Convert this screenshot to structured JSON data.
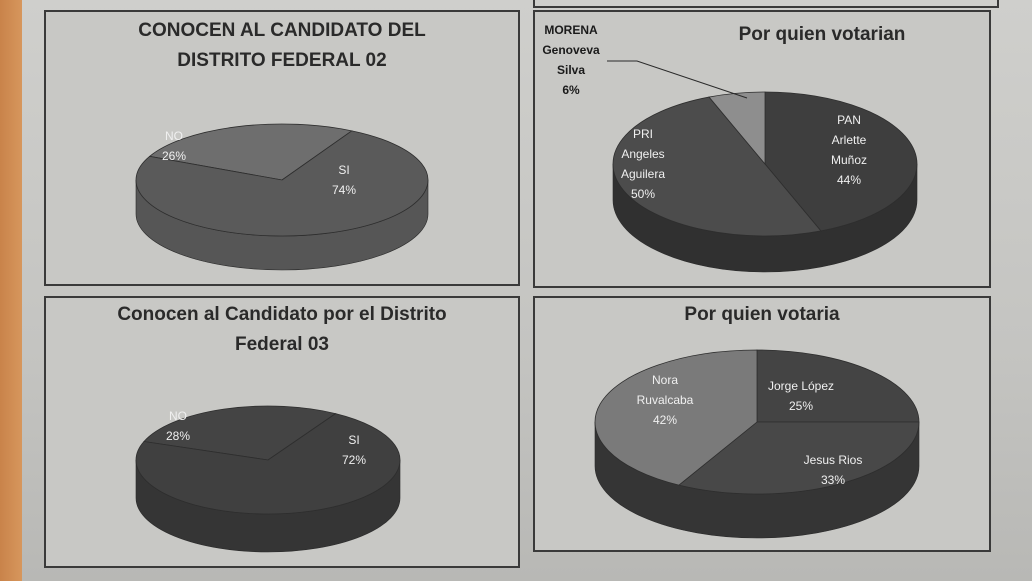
{
  "chart_data": [
    {
      "type": "pie",
      "title_lines": [
        "CONOCEN AL CANDIDATO DEL",
        "DISTRITO FEDERAL 02"
      ],
      "slices": [
        {
          "name_lines": [
            "NO"
          ],
          "value": 26,
          "pct": "26%",
          "color": "#6e6e6e"
        },
        {
          "name_lines": [
            "SI"
          ],
          "value": 74,
          "pct": "74%",
          "color": "#5a5a5a"
        }
      ]
    },
    {
      "type": "pie",
      "title_lines": [
        "Por quien votarian"
      ],
      "slices": [
        {
          "name_lines": [
            "PAN",
            "Arlette",
            "Muñoz"
          ],
          "value": 44,
          "pct": "44%",
          "color": "#3e3e3e"
        },
        {
          "name_lines": [
            "PRI",
            "Angeles",
            "Aguilera"
          ],
          "value": 50,
          "pct": "50%",
          "color": "#4c4c4c"
        },
        {
          "name_lines": [
            "MORENA",
            "Genoveva",
            "Silva"
          ],
          "value": 6,
          "pct": "6%",
          "color": "#8e8e8e"
        }
      ]
    },
    {
      "type": "pie",
      "title_lines": [
        "Conocen al Candidato por el Distrito",
        "Federal 03"
      ],
      "slices": [
        {
          "name_lines": [
            "NO"
          ],
          "value": 28,
          "pct": "28%",
          "color": "#444444"
        },
        {
          "name_lines": [
            "SI"
          ],
          "value": 72,
          "pct": "72%",
          "color": "#404040"
        }
      ]
    },
    {
      "type": "pie",
      "title_lines": [
        "Por quien votaria"
      ],
      "slices": [
        {
          "name_lines": [
            "Jorge López"
          ],
          "value": 25,
          "pct": "25%",
          "color": "#444444"
        },
        {
          "name_lines": [
            "Jesus Rios"
          ],
          "value": 33,
          "pct": "33%",
          "color": "#484848"
        },
        {
          "name_lines": [
            "Nora",
            "Ruvalcaba"
          ],
          "value": 42,
          "pct": "42%",
          "color": "#7a7a7a"
        }
      ]
    }
  ]
}
